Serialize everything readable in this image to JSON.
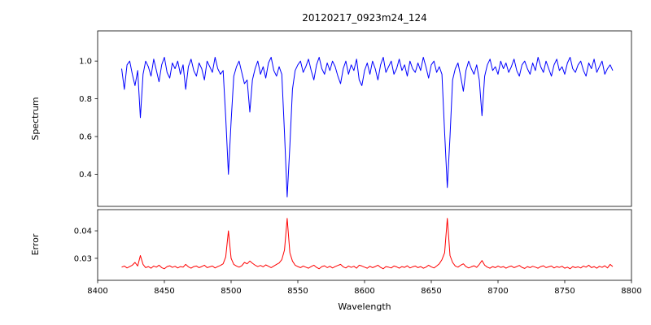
{
  "title": "20120217_0923m24_124",
  "chart_data": {
    "type": "line",
    "title": "20120217_0923m24_124",
    "xlabel": "Wavelength",
    "xlim": [
      8400,
      8800
    ],
    "xticks": [
      8400,
      8450,
      8500,
      8550,
      8600,
      8650,
      8700,
      8750,
      8800
    ],
    "grid": false,
    "legend": "none",
    "x": [
      8418,
      8420,
      8422,
      8424,
      8426,
      8428,
      8430,
      8432,
      8434,
      8436,
      8438,
      8440,
      8442,
      8444,
      8446,
      8448,
      8450,
      8452,
      8454,
      8456,
      8458,
      8460,
      8462,
      8464,
      8466,
      8468,
      8470,
      8472,
      8474,
      8476,
      8478,
      8480,
      8482,
      8484,
      8486,
      8488,
      8490,
      8492,
      8494,
      8496,
      8498,
      8500,
      8502,
      8504,
      8506,
      8508,
      8510,
      8512,
      8514,
      8516,
      8518,
      8520,
      8522,
      8524,
      8526,
      8528,
      8530,
      8532,
      8534,
      8536,
      8538,
      8540,
      8542,
      8544,
      8546,
      8548,
      8550,
      8552,
      8554,
      8556,
      8558,
      8560,
      8562,
      8564,
      8566,
      8568,
      8570,
      8572,
      8574,
      8576,
      8578,
      8580,
      8582,
      8584,
      8586,
      8588,
      8590,
      8592,
      8594,
      8596,
      8598,
      8600,
      8602,
      8604,
      8606,
      8608,
      8610,
      8612,
      8614,
      8616,
      8618,
      8620,
      8622,
      8624,
      8626,
      8628,
      8630,
      8632,
      8634,
      8636,
      8638,
      8640,
      8642,
      8644,
      8646,
      8648,
      8650,
      8652,
      8654,
      8656,
      8658,
      8660,
      8662,
      8664,
      8666,
      8668,
      8670,
      8672,
      8674,
      8676,
      8678,
      8680,
      8682,
      8684,
      8686,
      8688,
      8690,
      8692,
      8694,
      8696,
      8698,
      8700,
      8702,
      8704,
      8706,
      8708,
      8710,
      8712,
      8714,
      8716,
      8718,
      8720,
      8722,
      8724,
      8726,
      8728,
      8730,
      8732,
      8734,
      8736,
      8738,
      8740,
      8742,
      8744,
      8746,
      8748,
      8750,
      8752,
      8754,
      8756,
      8758,
      8760,
      8762,
      8764,
      8766,
      8768,
      8770,
      8772,
      8774,
      8776,
      8778,
      8780,
      8782,
      8784,
      8786
    ],
    "panels": [
      {
        "ylabel": "Spectrum",
        "color": "#0000ff",
        "ylim": [
          0.23,
          1.16
        ],
        "yticks": [
          "0.4",
          "0.6",
          "0.8",
          "1.0"
        ],
        "absorption_lines": [
          8498,
          8542,
          8662
        ],
        "values": [
          0.96,
          0.85,
          0.98,
          1.0,
          0.93,
          0.87,
          0.95,
          0.7,
          0.93,
          1.0,
          0.97,
          0.92,
          1.01,
          0.95,
          0.89,
          0.98,
          1.02,
          0.94,
          0.91,
          0.99,
          0.96,
          1.0,
          0.93,
          0.98,
          0.85,
          0.97,
          1.01,
          0.95,
          0.92,
          0.99,
          0.96,
          0.9,
          1.0,
          0.97,
          0.94,
          1.02,
          0.96,
          0.93,
          0.95,
          0.7,
          0.4,
          0.68,
          0.92,
          0.97,
          1.0,
          0.94,
          0.88,
          0.9,
          0.73,
          0.9,
          0.96,
          1.0,
          0.93,
          0.97,
          0.91,
          0.99,
          1.02,
          0.95,
          0.92,
          0.97,
          0.93,
          0.62,
          0.28,
          0.55,
          0.85,
          0.95,
          0.98,
          1.0,
          0.94,
          0.97,
          1.01,
          0.95,
          0.9,
          0.98,
          1.02,
          0.96,
          0.93,
          0.99,
          0.95,
          1.0,
          0.97,
          0.92,
          0.88,
          0.96,
          1.0,
          0.93,
          0.98,
          0.95,
          1.01,
          0.9,
          0.87,
          0.95,
          0.99,
          0.93,
          1.0,
          0.96,
          0.9,
          0.98,
          1.02,
          0.94,
          0.97,
          1.0,
          0.93,
          0.96,
          1.01,
          0.95,
          0.98,
          0.92,
          1.0,
          0.96,
          0.94,
          0.99,
          0.95,
          1.02,
          0.97,
          0.91,
          0.98,
          1.0,
          0.94,
          0.97,
          0.93,
          0.62,
          0.33,
          0.6,
          0.9,
          0.96,
          0.99,
          0.92,
          0.84,
          0.95,
          1.0,
          0.96,
          0.93,
          0.98,
          0.9,
          0.71,
          0.92,
          0.98,
          1.01,
          0.95,
          0.97,
          0.93,
          1.0,
          0.96,
          0.99,
          0.94,
          0.97,
          1.01,
          0.95,
          0.92,
          0.98,
          1.0,
          0.96,
          0.93,
          0.99,
          0.95,
          1.02,
          0.97,
          0.94,
          1.0,
          0.96,
          0.92,
          0.98,
          1.01,
          0.95,
          0.97,
          0.93,
          0.99,
          1.02,
          0.96,
          0.94,
          0.98,
          1.0,
          0.95,
          0.92,
          0.99,
          0.96,
          1.01,
          0.94,
          0.97,
          1.0,
          0.93,
          0.96,
          0.98,
          0.95
        ]
      },
      {
        "ylabel": "Error",
        "color": "#ff0000",
        "ylim": [
          0.022,
          0.0477
        ],
        "yticks": [
          "0.03",
          "0.04"
        ],
        "peaks": [
          8498,
          8542,
          8662
        ],
        "values": [
          0.0268,
          0.0272,
          0.0265,
          0.027,
          0.0275,
          0.0285,
          0.0272,
          0.031,
          0.0278,
          0.0266,
          0.027,
          0.0264,
          0.0272,
          0.0268,
          0.0275,
          0.0266,
          0.0262,
          0.027,
          0.0273,
          0.0267,
          0.0271,
          0.0265,
          0.027,
          0.0268,
          0.0278,
          0.0269,
          0.0264,
          0.027,
          0.0272,
          0.0266,
          0.027,
          0.0275,
          0.0266,
          0.0269,
          0.0272,
          0.0265,
          0.027,
          0.0274,
          0.028,
          0.0305,
          0.04,
          0.03,
          0.0278,
          0.0272,
          0.0268,
          0.0273,
          0.0285,
          0.028,
          0.029,
          0.0282,
          0.0275,
          0.027,
          0.0274,
          0.0269,
          0.0276,
          0.0271,
          0.0266,
          0.0272,
          0.0278,
          0.0283,
          0.0295,
          0.033,
          0.0445,
          0.032,
          0.029,
          0.0275,
          0.027,
          0.0266,
          0.0272,
          0.0268,
          0.0264,
          0.027,
          0.0275,
          0.0267,
          0.0262,
          0.027,
          0.0273,
          0.0266,
          0.0271,
          0.0265,
          0.027,
          0.0274,
          0.0278,
          0.0269,
          0.0265,
          0.0272,
          0.0267,
          0.0271,
          0.0264,
          0.0275,
          0.0272,
          0.0268,
          0.0264,
          0.0271,
          0.0266,
          0.027,
          0.0275,
          0.0267,
          0.0262,
          0.027,
          0.0268,
          0.0265,
          0.0272,
          0.0269,
          0.0264,
          0.027,
          0.0267,
          0.0273,
          0.0265,
          0.0269,
          0.0272,
          0.0266,
          0.027,
          0.0264,
          0.0268,
          0.0275,
          0.0269,
          0.0265,
          0.0272,
          0.028,
          0.0295,
          0.032,
          0.0445,
          0.031,
          0.0285,
          0.0272,
          0.0268,
          0.0275,
          0.028,
          0.027,
          0.0265,
          0.0269,
          0.0273,
          0.0267,
          0.0278,
          0.0292,
          0.0275,
          0.0268,
          0.0264,
          0.027,
          0.0266,
          0.0272,
          0.0267,
          0.027,
          0.0264,
          0.0269,
          0.0272,
          0.0266,
          0.027,
          0.0274,
          0.0267,
          0.0263,
          0.027,
          0.0266,
          0.0271,
          0.0268,
          0.0264,
          0.027,
          0.0273,
          0.0266,
          0.0269,
          0.0272,
          0.0265,
          0.027,
          0.0267,
          0.0271,
          0.0264,
          0.0268,
          0.0262,
          0.027,
          0.0266,
          0.0269,
          0.0265,
          0.0272,
          0.0268,
          0.0275,
          0.0266,
          0.027,
          0.0264,
          0.0271,
          0.0267,
          0.0273,
          0.0265,
          0.0278,
          0.027
        ]
      }
    ]
  },
  "colors": {
    "spectrum_line": "#0000ff",
    "error_line": "#ff0000",
    "axis": "#000000",
    "background": "#ffffff"
  }
}
